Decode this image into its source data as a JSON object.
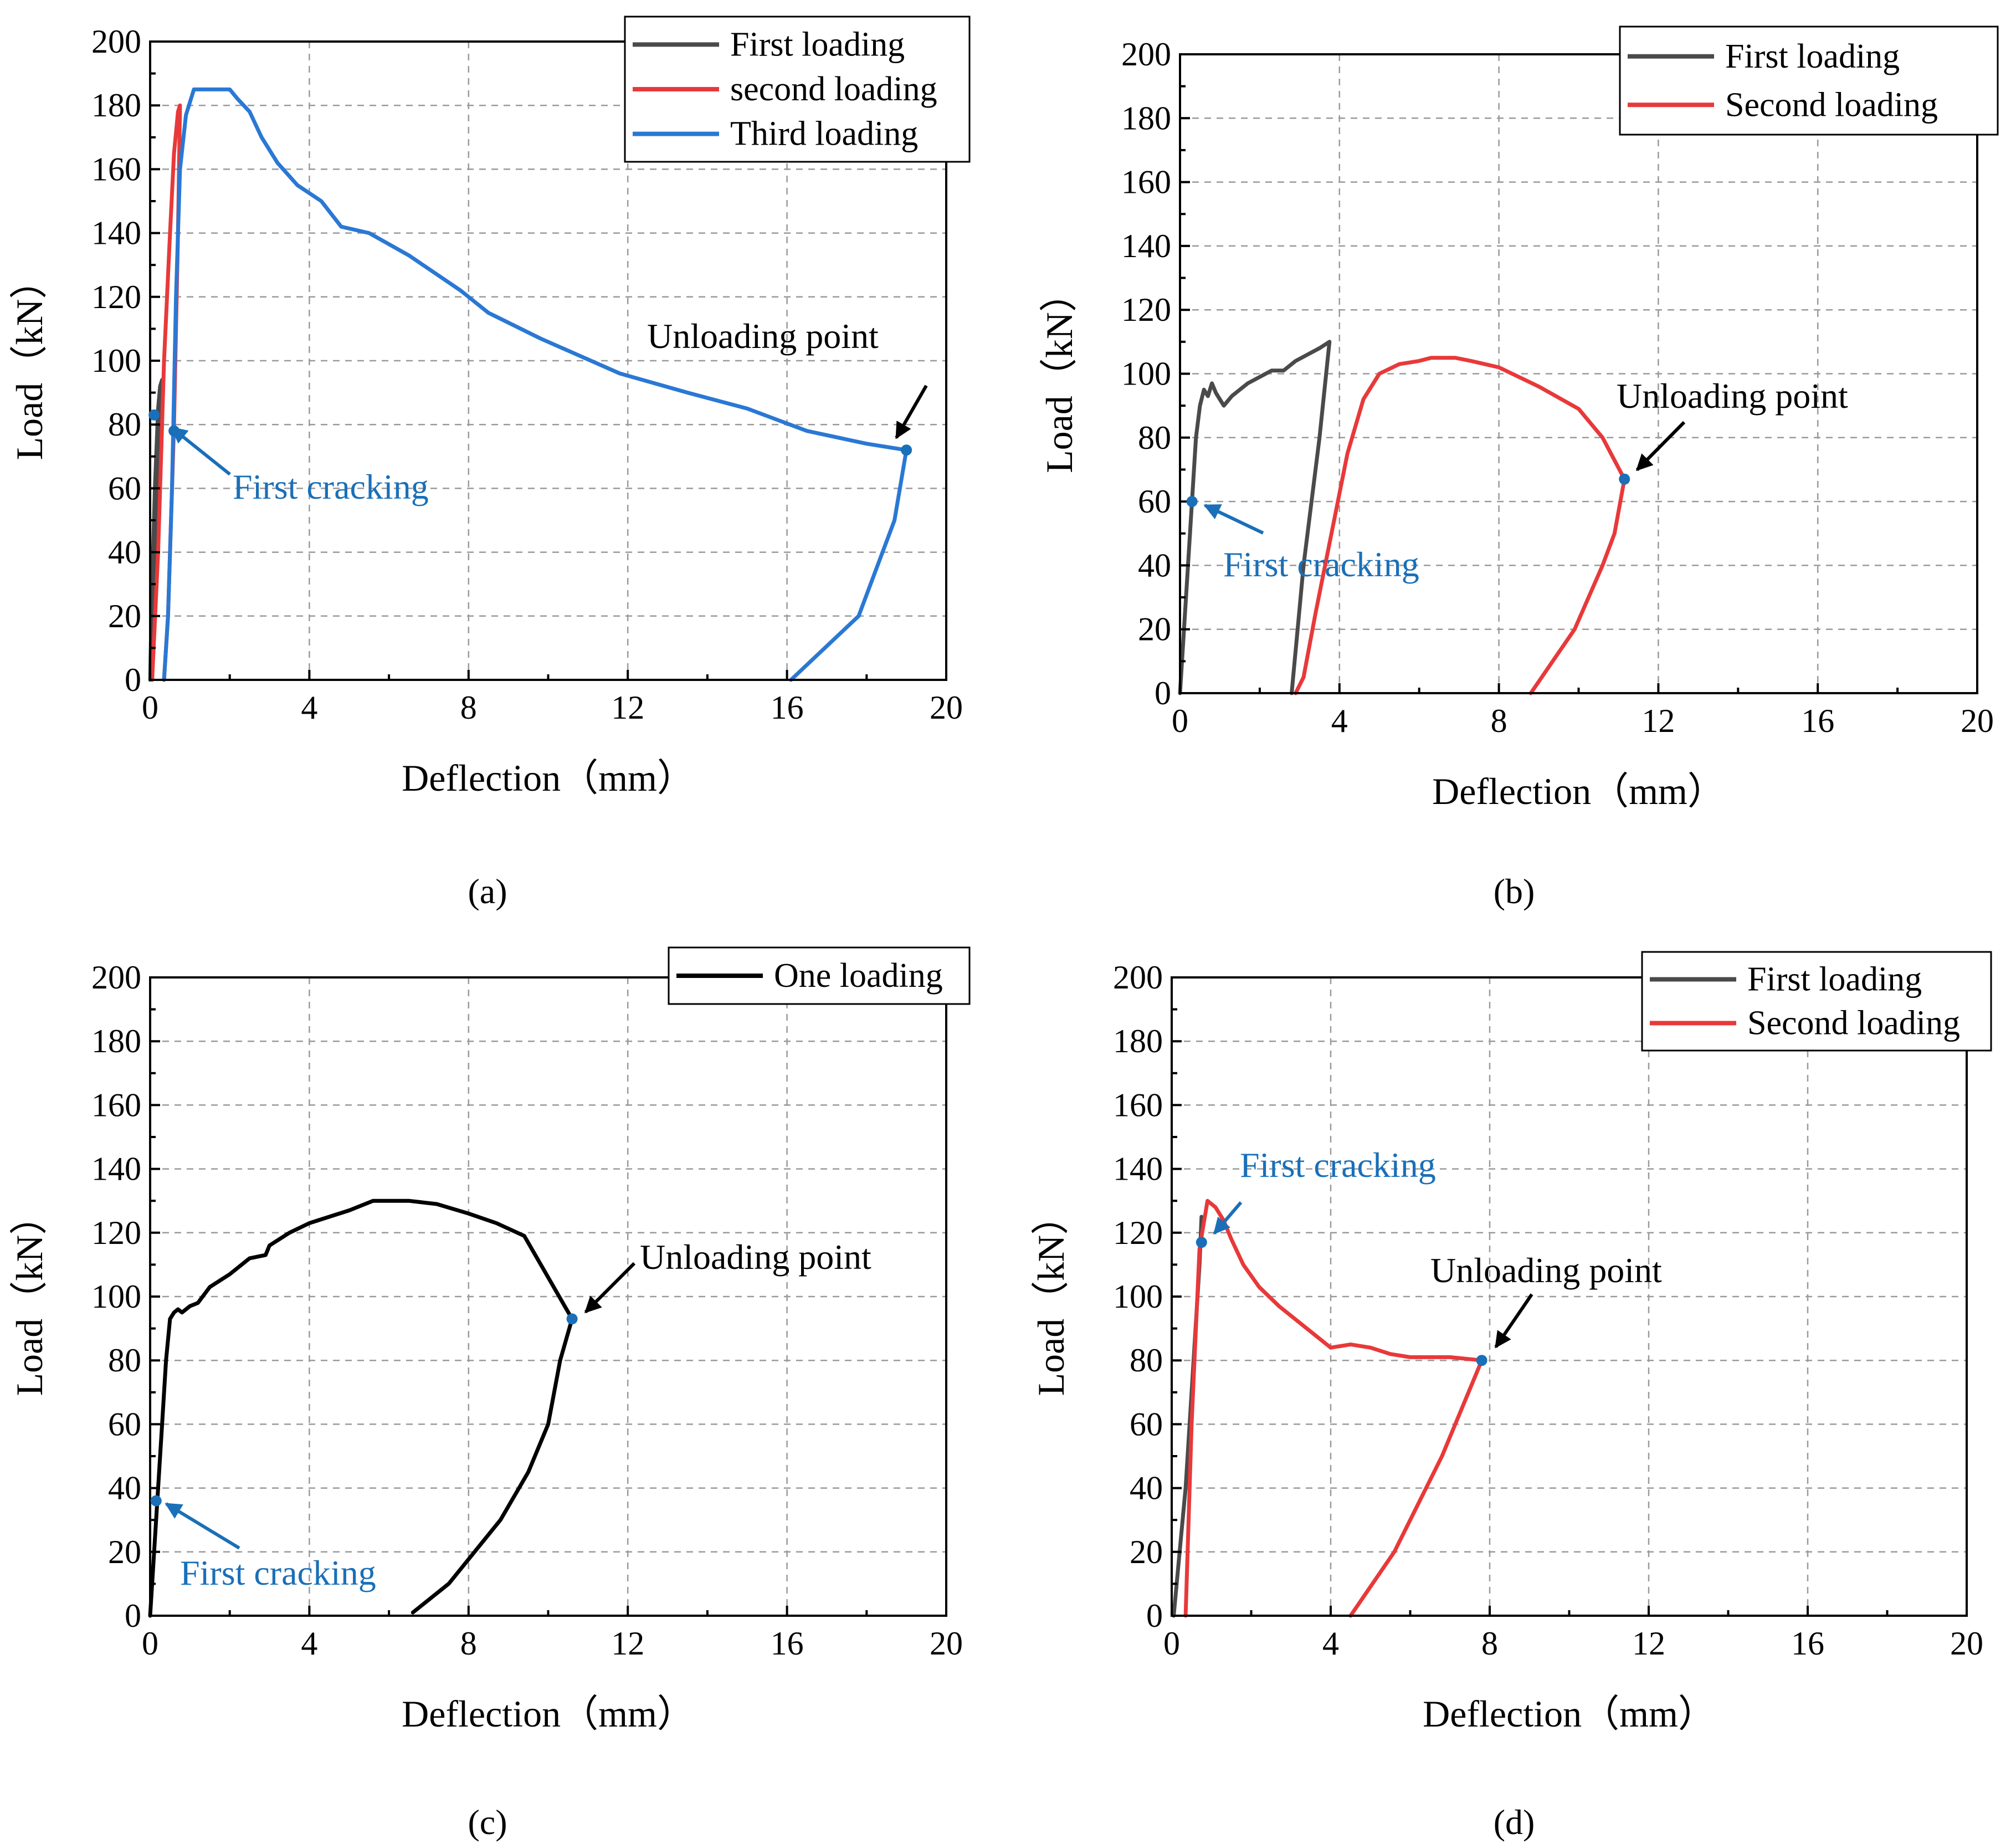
{
  "colors": {
    "gray": "#4a4a4a",
    "red": "#e8393a",
    "blue": "#2a78d4",
    "black": "#000000",
    "annot_blue": "#1a6fb8"
  },
  "panels": [
    {
      "id": "a",
      "caption": "(a)",
      "chart_data": {
        "type": "line",
        "title": "",
        "xlabel": "Deflection（mm）",
        "ylabel": "Load（kN）",
        "xlim": [
          0,
          20
        ],
        "ylim": [
          0,
          200
        ],
        "xticks": [
          "0",
          "4",
          "8",
          "12",
          "16",
          "20"
        ],
        "yticks": [
          "0",
          "20",
          "40",
          "60",
          "80",
          "100",
          "120",
          "140",
          "160",
          "180",
          "200"
        ],
        "legend_position": "top-right",
        "series": [
          {
            "name": "First loading",
            "color": "#4a4a4a",
            "x": [
              0,
              0.05,
              0.12,
              0.2,
              0.25,
              0.3,
              0.2,
              0.1,
              0.05
            ],
            "y": [
              0,
              30,
              60,
              85,
              92,
              94,
              60,
              25,
              0
            ]
          },
          {
            "name": "second loading",
            "color": "#e8393a",
            "x": [
              0.05,
              0.2,
              0.35,
              0.5,
              0.6,
              0.7,
              0.75,
              0.7,
              0.6,
              0.45,
              0.35
            ],
            "y": [
              0,
              40,
              100,
              140,
              165,
              178,
              180,
              140,
              80,
              20,
              0
            ]
          },
          {
            "name": "Third loading",
            "color": "#2a78d4",
            "x": [
              0.35,
              0.45,
              0.55,
              0.65,
              0.75,
              0.9,
              1.1,
              2.0,
              2.2,
              2.5,
              2.8,
              3.2,
              3.7,
              4.3,
              4.8,
              5.5,
              6.5,
              7.8,
              8.5,
              9.8,
              11.8,
              13.5,
              15,
              16.5,
              18,
              19.0,
              18.7,
              17.8,
              16.1
            ],
            "y": [
              0,
              20,
              60,
              120,
              160,
              177,
              185,
              185,
              182,
              178,
              170,
              162,
              155,
              150,
              142,
              140,
              133,
              122,
              115,
              107,
              96,
              90,
              85,
              78,
              74,
              72,
              50,
              20,
              0
            ]
          }
        ],
        "annotations": [
          {
            "text": "Unloading point",
            "color": "#000000",
            "point": [
              19.0,
              72
            ]
          },
          {
            "text": "First cracking",
            "color": "#1a6fb8",
            "point": [
              0.1,
              83
            ]
          }
        ],
        "extra_points": [
          {
            "point": [
              0.6,
              78
            ],
            "color": "#1a6fb8"
          }
        ]
      }
    },
    {
      "id": "b",
      "caption": "(b)",
      "chart_data": {
        "type": "line",
        "title": "",
        "xlabel": "Deflection（mm）",
        "ylabel": "Load（kN）",
        "xlim": [
          0,
          20
        ],
        "ylim": [
          0,
          200
        ],
        "xticks": [
          "0",
          "4",
          "8",
          "12",
          "16",
          "20"
        ],
        "yticks": [
          "0",
          "20",
          "40",
          "60",
          "80",
          "100",
          "120",
          "140",
          "160",
          "180",
          "200"
        ],
        "legend_position": "top-right",
        "series": [
          {
            "name": "First loading",
            "color": "#4a4a4a",
            "x": [
              0,
              0.15,
              0.3,
              0.4,
              0.5,
              0.6,
              0.7,
              0.8,
              0.9,
              1.0,
              1.1,
              1.3,
              1.5,
              1.7,
              2.0,
              2.3,
              2.6,
              2.9,
              3.2,
              3.5,
              3.75,
              3.5,
              3.3,
              3.1,
              2.95,
              2.8
            ],
            "y": [
              0,
              30,
              60,
              80,
              90,
              95,
              93,
              97,
              94,
              92,
              90,
              93,
              95,
              97,
              99,
              101,
              101,
              104,
              106,
              108,
              110,
              80,
              60,
              40,
              20,
              0
            ]
          },
          {
            "name": "Second loading",
            "color": "#e8393a",
            "x": [
              2.9,
              3.1,
              3.4,
              3.8,
              4.2,
              4.6,
              5.0,
              5.5,
              6.0,
              6.3,
              6.9,
              7.3,
              8.0,
              9.0,
              10.0,
              10.6,
              11.15,
              10.9,
              10.6,
              9.9,
              8.8
            ],
            "y": [
              0,
              5,
              25,
              50,
              75,
              92,
              100,
              103,
              104,
              105,
              105,
              104,
              102,
              96,
              89,
              80,
              67,
              50,
              40,
              20,
              0
            ]
          }
        ],
        "annotations": [
          {
            "text": "Unloading point",
            "color": "#000000",
            "point": [
              11.15,
              67
            ]
          },
          {
            "text": "First cracking",
            "color": "#1a6fb8",
            "point": [
              0.3,
              60
            ]
          }
        ],
        "extra_points": []
      }
    },
    {
      "id": "c",
      "caption": "(c)",
      "chart_data": {
        "type": "line",
        "title": "",
        "xlabel": "Deflection（mm）",
        "ylabel": "Load（kN）",
        "xlim": [
          0,
          20
        ],
        "ylim": [
          0,
          200
        ],
        "xticks": [
          "0",
          "4",
          "8",
          "12",
          "16",
          "20"
        ],
        "yticks": [
          "0",
          "20",
          "40",
          "60",
          "80",
          "100",
          "120",
          "140",
          "160",
          "180",
          "200"
        ],
        "legend_position": "top-right",
        "series": [
          {
            "name": "One loading",
            "color": "#000000",
            "x": [
              0,
              0.1,
              0.2,
              0.3,
              0.4,
              0.5,
              0.6,
              0.7,
              0.8,
              0.9,
              1.0,
              1.2,
              1.5,
              2.0,
              2.5,
              2.9,
              3.0,
              3.5,
              4.0,
              4.5,
              5.0,
              5.6,
              6.5,
              7.2,
              8.0,
              8.7,
              9.4,
              10.6,
              10.3,
              10.0,
              9.5,
              8.8,
              7.5,
              6.6
            ],
            "y": [
              0,
              20,
              40,
              60,
              80,
              93,
              95,
              96,
              95,
              96,
              97,
              98,
              103,
              107,
              112,
              113,
              116,
              120,
              123,
              125,
              127,
              130,
              130,
              129,
              126,
              123,
              119,
              93,
              80,
              60,
              45,
              30,
              10,
              1
            ]
          }
        ],
        "annotations": [
          {
            "text": "Unloading point",
            "color": "#000000",
            "point": [
              10.6,
              93
            ]
          },
          {
            "text": "First cracking",
            "color": "#1a6fb8",
            "point": [
              0.15,
              36
            ]
          }
        ],
        "extra_points": []
      }
    },
    {
      "id": "d",
      "caption": "(d)",
      "chart_data": {
        "type": "line",
        "title": "",
        "xlabel": "Deflection（mm）",
        "ylabel": "Load（kN）",
        "xlim": [
          0,
          20
        ],
        "ylim": [
          0,
          200
        ],
        "xticks": [
          "0",
          "4",
          "8",
          "12",
          "16",
          "20"
        ],
        "yticks": [
          "0",
          "20",
          "40",
          "60",
          "80",
          "100",
          "120",
          "140",
          "160",
          "180",
          "200"
        ],
        "legend_position": "top-right",
        "series": [
          {
            "name": "First loading",
            "color": "#4a4a4a",
            "x": [
              0.05,
              0.2,
              0.35,
              0.5,
              0.7,
              0.75
            ],
            "y": [
              0,
              20,
              40,
              70,
              110,
              125
            ]
          },
          {
            "name": "Second loading",
            "color": "#e8393a",
            "x": [
              0.35,
              0.5,
              0.7,
              0.9,
              1.1,
              1.3,
              1.5,
              1.8,
              2.2,
              2.7,
              3.4,
              4.0,
              4.5,
              5.0,
              5.5,
              6.0,
              7.0,
              7.8,
              7.3,
              6.8,
              5.6,
              4.5
            ],
            "y": [
              0,
              60,
              115,
              130,
              128,
              124,
              118,
              110,
              103,
              97,
              90,
              84,
              85,
              84,
              82,
              81,
              81,
              80,
              65,
              50,
              20,
              0
            ]
          }
        ],
        "annotations": [
          {
            "text": "Unloading point",
            "color": "#000000",
            "point": [
              7.8,
              80
            ]
          },
          {
            "text": "First cracking",
            "color": "#1a6fb8",
            "point": [
              0.75,
              117
            ]
          }
        ],
        "extra_points": []
      }
    }
  ]
}
